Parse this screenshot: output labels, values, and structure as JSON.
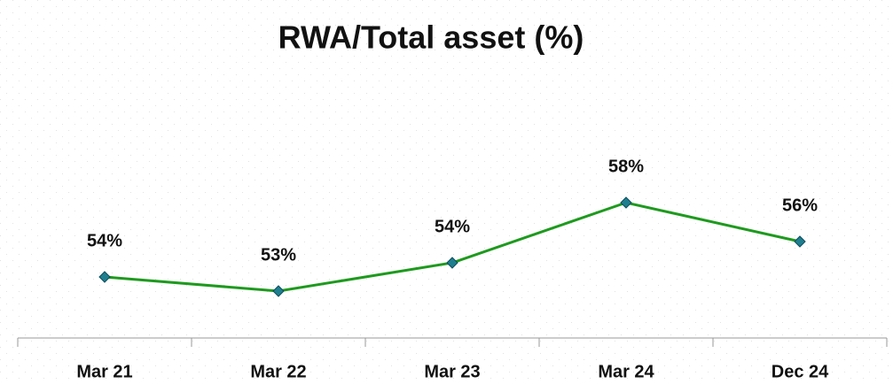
{
  "chart_data": {
    "type": "line",
    "title": "RWA/Total asset (%)",
    "categories": [
      "Mar 21",
      "Mar 22",
      "Mar 23",
      "Mar 24",
      "Dec 24"
    ],
    "values": [
      53.6,
      52.8,
      54.4,
      57.8,
      55.6
    ],
    "value_labels": [
      "54%",
      "53%",
      "54%",
      "58%",
      "56%"
    ],
    "color": "#1e9a1e",
    "marker_color": "#1f7f8f"
  }
}
